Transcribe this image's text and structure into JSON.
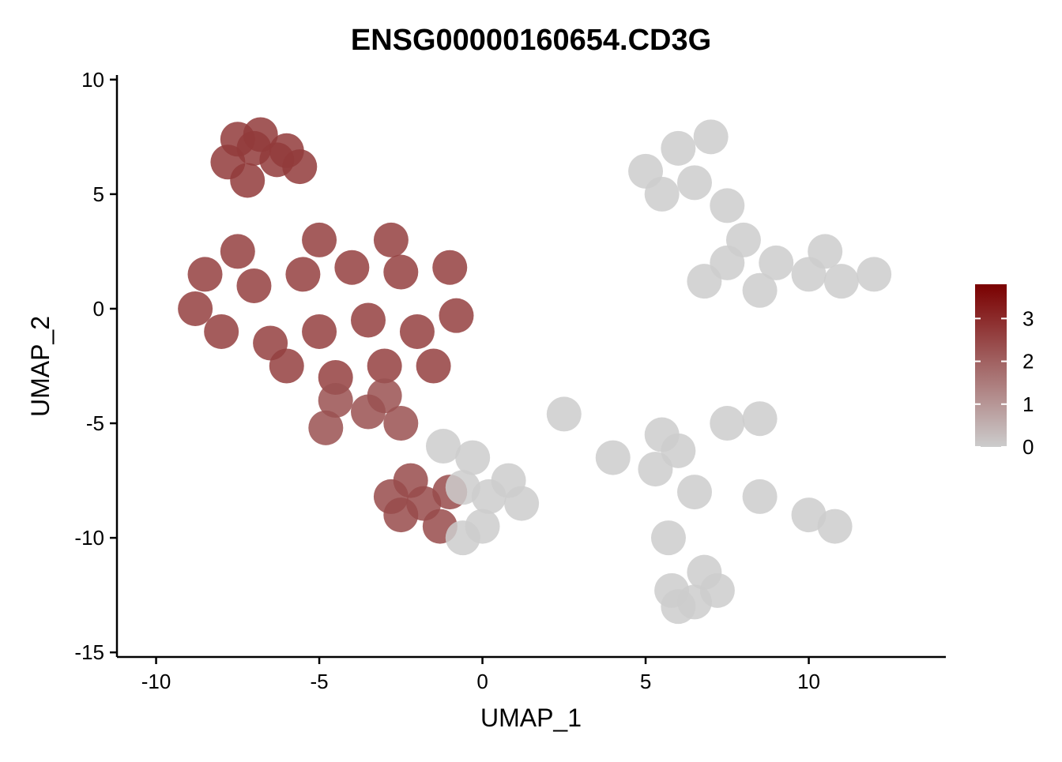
{
  "chart_data": {
    "type": "scatter",
    "title": "ENSG00000160654.CD3G",
    "xlabel": "UMAP_1",
    "ylabel": "UMAP_2",
    "xlim": [
      -11.2,
      14.2
    ],
    "ylim": [
      -15.2,
      10.2
    ],
    "xticks": [
      -10,
      -5,
      0,
      5,
      10
    ],
    "yticks": [
      -15,
      -10,
      -5,
      0,
      5,
      10
    ],
    "grid": false,
    "legend": {
      "placement": "right",
      "range": [
        0,
        3.8
      ],
      "ticks": [
        0,
        1,
        2,
        3
      ],
      "low_color": "#CCCCCC",
      "high_color": "#7A0000"
    },
    "clusters": [
      {
        "name_hint": "",
        "expr": 2.7,
        "points": [
          [
            -7.5,
            7.4
          ],
          [
            -7.0,
            7.0
          ],
          [
            -6.3,
            6.5
          ],
          [
            -5.6,
            6.2
          ],
          [
            -7.8,
            6.4
          ],
          [
            -6.8,
            7.6
          ],
          [
            -7.2,
            5.6
          ],
          [
            -6.0,
            6.9
          ]
        ]
      },
      {
        "name_hint": "",
        "expr": 2.6,
        "points": [
          [
            -8.5,
            1.5
          ],
          [
            -7.0,
            1.0
          ],
          [
            -5.5,
            1.5
          ],
          [
            -4.0,
            1.8
          ],
          [
            -2.5,
            1.6
          ],
          [
            -1.0,
            1.8
          ],
          [
            -8.0,
            -1.0
          ],
          [
            -6.5,
            -1.5
          ],
          [
            -5.0,
            -1.0
          ],
          [
            -3.5,
            -0.5
          ],
          [
            -2.0,
            -1.0
          ],
          [
            -0.8,
            -0.3
          ],
          [
            -4.5,
            -3.0
          ],
          [
            -3.0,
            -2.5
          ],
          [
            -1.5,
            -2.5
          ],
          [
            -5.0,
            3.0
          ],
          [
            -2.8,
            3.0
          ],
          [
            -7.5,
            2.5
          ],
          [
            -8.8,
            0.0
          ],
          [
            -6.0,
            -2.5
          ]
        ]
      },
      {
        "name_hint": "",
        "expr": 2.3,
        "points": [
          [
            -4.5,
            -4.0
          ],
          [
            -3.5,
            -4.5
          ],
          [
            -4.8,
            -5.2
          ],
          [
            -3.0,
            -3.8
          ],
          [
            -2.5,
            -5.0
          ]
        ]
      },
      {
        "name_hint": "",
        "expr": 2.4,
        "points": [
          [
            -2.2,
            -7.5
          ],
          [
            -1.8,
            -8.5
          ],
          [
            -2.5,
            -9.0
          ],
          [
            -1.3,
            -9.5
          ],
          [
            -1.0,
            -8.0
          ],
          [
            -2.8,
            -8.2
          ]
        ]
      },
      {
        "name_hint": "",
        "expr": 0.0,
        "points": [
          [
            -0.6,
            -7.8
          ],
          [
            0.2,
            -8.2
          ],
          [
            0.8,
            -7.5
          ],
          [
            0.0,
            -9.5
          ],
          [
            -0.3,
            -6.5
          ],
          [
            -1.2,
            -6.0
          ],
          [
            -0.6,
            -10.0
          ],
          [
            1.2,
            -8.5
          ]
        ]
      },
      {
        "name_hint": "",
        "expr": 0.0,
        "points": [
          [
            5.0,
            6.0
          ],
          [
            6.0,
            7.0
          ],
          [
            7.0,
            7.5
          ],
          [
            5.5,
            5.0
          ],
          [
            6.5,
            5.5
          ],
          [
            7.5,
            4.5
          ],
          [
            8.0,
            3.0
          ],
          [
            9.0,
            2.0
          ],
          [
            10.0,
            1.5
          ],
          [
            11.0,
            1.2
          ],
          [
            12.0,
            1.5
          ],
          [
            6.8,
            1.2
          ],
          [
            8.5,
            0.8
          ],
          [
            7.5,
            2.0
          ],
          [
            10.5,
            2.5
          ]
        ]
      },
      {
        "name_hint": "",
        "expr": 0.0,
        "points": [
          [
            2.5,
            -4.6
          ],
          [
            4.0,
            -6.5
          ],
          [
            5.5,
            -5.5
          ],
          [
            6.0,
            -6.2
          ],
          [
            7.5,
            -5.0
          ],
          [
            8.5,
            -4.8
          ],
          [
            8.5,
            -8.2
          ],
          [
            10.0,
            -9.0
          ],
          [
            10.8,
            -9.5
          ],
          [
            5.3,
            -7.0
          ],
          [
            6.5,
            -8.0
          ]
        ]
      },
      {
        "name_hint": "",
        "expr": 0.0,
        "points": [
          [
            5.8,
            -12.3
          ],
          [
            6.5,
            -12.8
          ],
          [
            7.2,
            -12.3
          ],
          [
            6.0,
            -13.0
          ],
          [
            6.8,
            -11.5
          ],
          [
            5.7,
            -10.0
          ]
        ]
      }
    ]
  }
}
